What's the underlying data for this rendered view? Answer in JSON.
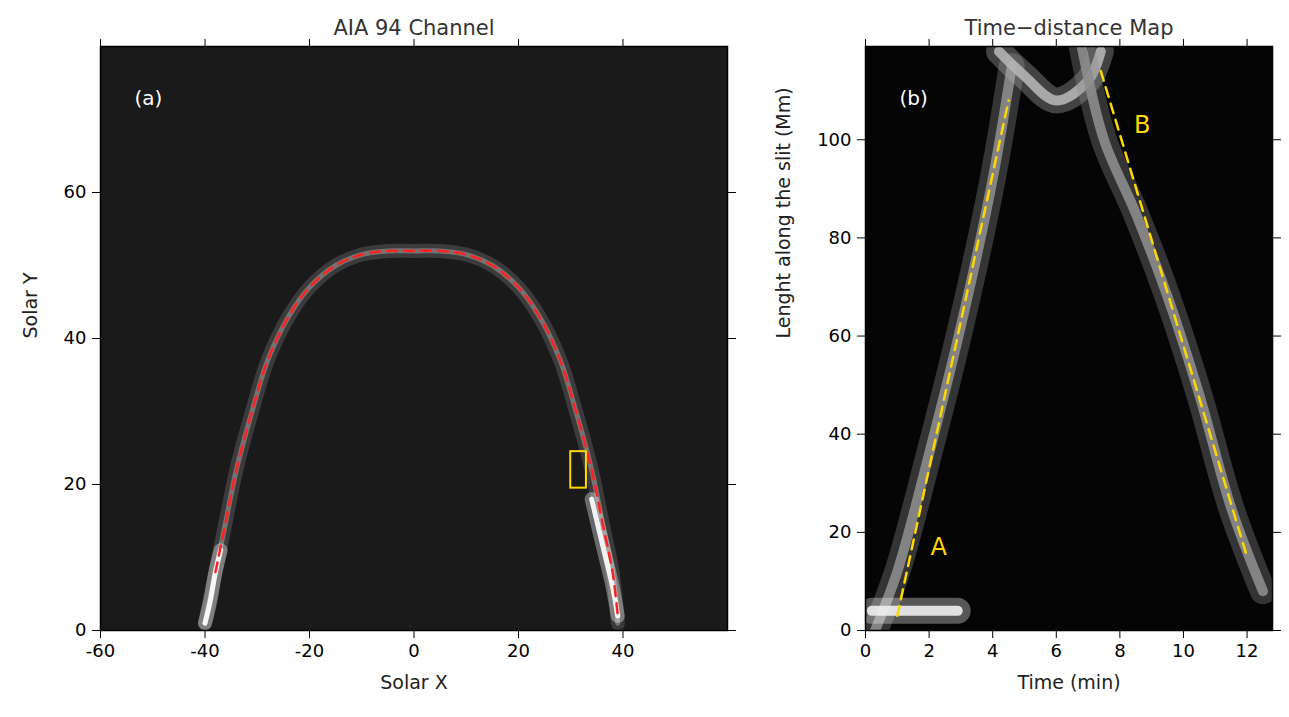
{
  "chart_data": [
    {
      "type": "line",
      "title": "AIA 94 Channel",
      "annotations": [
        {
          "text": "(a)"
        }
      ],
      "x_label": "Solar X",
      "y_label": "Solar Y",
      "xlim": [
        -60,
        60
      ],
      "xticks": [
        -60,
        -40,
        -20,
        0,
        20,
        40
      ],
      "ylim": [
        0,
        80
      ],
      "yticks": [
        0,
        20,
        40,
        60
      ],
      "series": [
        {
          "color": "#7a7a7a",
          "line_style": "solid",
          "x": [
            -40,
            -38,
            -36,
            -34,
            -31,
            -28,
            -24,
            -20,
            -15,
            -10,
            -5,
            0,
            5,
            10,
            15,
            20,
            24,
            28,
            31,
            34,
            36,
            38,
            39
          ],
          "values": [
            1,
            8,
            15,
            22,
            30,
            37,
            43,
            47,
            50,
            51.5,
            52,
            52,
            52,
            51.5,
            50,
            47,
            43,
            37,
            30,
            22,
            15,
            8,
            1
          ]
        },
        {
          "color": "#ffffff",
          "line_style": "solid",
          "x": [
            -40,
            -39,
            -38,
            -37
          ],
          "values": [
            1,
            4,
            8,
            11
          ]
        },
        {
          "color": "#ffffff",
          "line_style": "solid",
          "x": [
            34,
            36,
            38,
            39
          ],
          "values": [
            18,
            12,
            6,
            2
          ]
        },
        {
          "color": "#ff2020",
          "line_style": "dashed",
          "x": [
            -38,
            -36,
            -34,
            -31,
            -28,
            -24,
            -20,
            -15,
            -10,
            -5,
            0,
            5,
            10,
            15,
            20,
            24,
            28,
            31,
            34,
            36,
            38,
            39
          ],
          "values": [
            8,
            15,
            22,
            30,
            37,
            43,
            47,
            50,
            51.5,
            52,
            52,
            52,
            51.5,
            50,
            47,
            43,
            37,
            30,
            22,
            15,
            8,
            2
          ]
        }
      ],
      "box": {
        "x": [
          30,
          33
        ],
        "y": [
          19.5,
          24.5
        ],
        "color": "#ffd700"
      }
    },
    {
      "type": "line",
      "title": "Time−distance Map",
      "annotations": [
        {
          "text": "(b)"
        },
        {
          "text": "A",
          "x": 2.3,
          "y": 17,
          "color": "#ffd700"
        },
        {
          "text": "B",
          "x": 8.7,
          "y": 103,
          "color": "#ffd700"
        }
      ],
      "x_label": "Time (min)",
      "y_label": "Lenght along the slit (Mm)",
      "xlim": [
        0,
        12.8
      ],
      "xticks": [
        0,
        2,
        4,
        6,
        8,
        10,
        12
      ],
      "ylim": [
        0,
        119
      ],
      "yticks": [
        0,
        20,
        40,
        60,
        80,
        100
      ],
      "series": [
        {
          "color": "#8c8c8c",
          "line_style": "solid",
          "x": [
            0.3,
            1,
            2,
            3,
            4,
            4.6
          ],
          "values": [
            0,
            12,
            36,
            62,
            92,
            115
          ]
        },
        {
          "color": "#b4b4b4",
          "line_style": "solid",
          "x": [
            4.2,
            5,
            6,
            7,
            7.4
          ],
          "values": [
            118,
            113,
            108,
            112,
            118
          ]
        },
        {
          "color": "#8c8c8c",
          "line_style": "solid",
          "x": [
            6.8,
            7.5,
            8.5,
            9.5,
            10.5,
            11.5,
            12.5
          ],
          "values": [
            119,
            100,
            85,
            68,
            48,
            25,
            8
          ]
        },
        {
          "color": "#f0f0f0",
          "line_style": "solid",
          "x": [
            0.2,
            1.5,
            2.9
          ],
          "values": [
            4,
            4,
            4
          ]
        },
        {
          "color": "#ffd700",
          "line_style": "dashed",
          "x": [
            1,
            4.5
          ],
          "values": [
            3,
            108
          ]
        },
        {
          "color": "#ffd700",
          "line_style": "dashed",
          "x": [
            7.4,
            12
          ],
          "values": [
            114,
            15
          ]
        }
      ]
    }
  ]
}
